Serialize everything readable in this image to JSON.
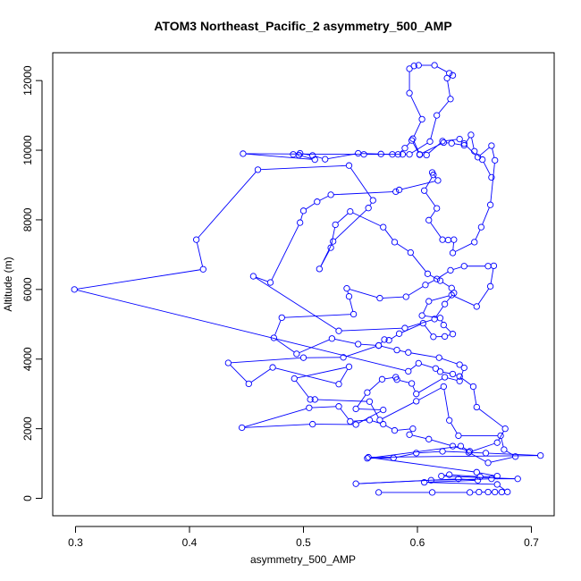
{
  "chart_data": {
    "type": "line",
    "title": "ATOM3 Northeast_Pacific_2 asymmetry_500_AMP",
    "xlabel": "asymmetry_500_AMP",
    "ylabel": "Altitude (m)",
    "xlim": [
      0.28,
      0.72
    ],
    "ylim": [
      -500,
      12800
    ],
    "xticks": [
      0.3,
      0.4,
      0.5,
      0.6,
      0.7
    ],
    "xtick_labels": [
      "0.3",
      "0.4",
      "0.5",
      "0.6",
      "0.7"
    ],
    "yticks": [
      0,
      2000,
      4000,
      6000,
      8000,
      10000,
      12000
    ],
    "ytick_labels": [
      "0",
      "2000",
      "4000",
      "6000",
      "8000",
      "10000",
      "12000"
    ],
    "grid": false,
    "colors": {
      "series": "#0000ff",
      "axes": "#000000"
    },
    "series": [
      {
        "marker": "open-circle",
        "points": [
          [
            0.566,
            170
          ],
          [
            0.613,
            170
          ],
          [
            0.646,
            170
          ],
          [
            0.654,
            180
          ],
          [
            0.662,
            180
          ],
          [
            0.668,
            180
          ],
          [
            0.674,
            180
          ],
          [
            0.679,
            185
          ],
          [
            0.67,
            400
          ],
          [
            0.606,
            460
          ],
          [
            0.653,
            520
          ],
          [
            0.636,
            560
          ],
          [
            0.546,
            420
          ],
          [
            0.612,
            520
          ],
          [
            0.665,
            560
          ],
          [
            0.688,
            560
          ],
          [
            0.621,
            640
          ],
          [
            0.628,
            680
          ],
          [
            0.655,
            620
          ],
          [
            0.67,
            640
          ],
          [
            0.652,
            750
          ],
          [
            0.557,
            1180
          ],
          [
            0.708,
            1230
          ],
          [
            0.66,
            1300
          ],
          [
            0.622,
            1350
          ],
          [
            0.599,
            1300
          ],
          [
            0.579,
            1160
          ],
          [
            0.556,
            1150
          ],
          [
            0.638,
            1500
          ],
          [
            0.646,
            1350
          ],
          [
            0.631,
            1500
          ],
          [
            0.61,
            1700
          ],
          [
            0.593,
            1830
          ],
          [
            0.596,
            2000
          ],
          [
            0.58,
            1950
          ],
          [
            0.57,
            2130
          ],
          [
            0.558,
            2250
          ],
          [
            0.541,
            2210
          ],
          [
            0.531,
            2640
          ],
          [
            0.505,
            2600
          ],
          [
            0.446,
            2030
          ],
          [
            0.508,
            2130
          ],
          [
            0.546,
            2120
          ],
          [
            0.57,
            2540
          ],
          [
            0.546,
            2570
          ],
          [
            0.556,
            3040
          ],
          [
            0.569,
            3420
          ],
          [
            0.581,
            3480
          ],
          [
            0.582,
            3410
          ],
          [
            0.595,
            3300
          ],
          [
            0.599,
            3000
          ],
          [
            0.624,
            3480
          ],
          [
            0.637,
            3370
          ],
          [
            0.641,
            3750
          ],
          [
            0.637,
            3840
          ],
          [
            0.619,
            4040
          ],
          [
            0.592,
            4190
          ],
          [
            0.582,
            4260
          ],
          [
            0.566,
            4390
          ],
          [
            0.548,
            4430
          ],
          [
            0.525,
            4590
          ],
          [
            0.494,
            4150
          ],
          [
            0.474,
            4610
          ],
          [
            0.481,
            5190
          ],
          [
            0.544,
            5290
          ],
          [
            0.54,
            5800
          ],
          [
            0.538,
            6030
          ],
          [
            0.567,
            5750
          ],
          [
            0.59,
            5790
          ],
          [
            0.607,
            6130
          ],
          [
            0.617,
            6300
          ],
          [
            0.629,
            6550
          ],
          [
            0.641,
            6670
          ],
          [
            0.662,
            6670
          ],
          [
            0.667,
            6680
          ],
          [
            0.664,
            6090
          ],
          [
            0.652,
            5510
          ],
          [
            0.63,
            5840
          ],
          [
            0.61,
            5660
          ],
          [
            0.604,
            5250
          ],
          [
            0.62,
            5180
          ],
          [
            0.623,
            4980
          ],
          [
            0.631,
            4720
          ],
          [
            0.624,
            4650
          ],
          [
            0.614,
            4640
          ],
          [
            0.605,
            5030
          ],
          [
            0.584,
            4730
          ],
          [
            0.575,
            4540
          ],
          [
            0.571,
            4560
          ],
          [
            0.566,
            4390
          ],
          [
            0.535,
            4050
          ],
          [
            0.5,
            4040
          ],
          [
            0.434,
            3890
          ],
          [
            0.452,
            3290
          ],
          [
            0.473,
            3760
          ],
          [
            0.531,
            3280
          ],
          [
            0.54,
            3780
          ],
          [
            0.492,
            3440
          ],
          [
            0.506,
            2840
          ],
          [
            0.51,
            2840
          ],
          [
            0.558,
            2780
          ],
          [
            0.567,
            2250
          ],
          [
            0.599,
            2790
          ],
          [
            0.623,
            3210
          ],
          [
            0.628,
            2240
          ],
          [
            0.636,
            1800
          ],
          [
            0.673,
            1800
          ],
          [
            0.676,
            1400
          ],
          [
            0.686,
            1200
          ],
          [
            0.662,
            1020
          ],
          [
            0.645,
            1320
          ],
          [
            0.67,
            1600
          ],
          [
            0.677,
            2000
          ],
          [
            0.652,
            2620
          ],
          [
            0.649,
            3210
          ],
          [
            0.637,
            3500
          ],
          [
            0.631,
            3570
          ],
          [
            0.62,
            3640
          ],
          [
            0.616,
            3730
          ],
          [
            0.601,
            3880
          ],
          [
            0.592,
            3650
          ],
          [
            0.299,
            6000
          ],
          [
            0.412,
            6580
          ],
          [
            0.406,
            7430
          ],
          [
            0.46,
            9440
          ],
          [
            0.54,
            9560
          ],
          [
            0.561,
            8560
          ],
          [
            0.557,
            8340
          ],
          [
            0.526,
            7380
          ],
          [
            0.514,
            6590
          ],
          [
            0.524,
            7200
          ],
          [
            0.528,
            7860
          ],
          [
            0.541,
            8240
          ],
          [
            0.57,
            7790
          ],
          [
            0.58,
            7360
          ],
          [
            0.594,
            7060
          ],
          [
            0.609,
            6450
          ],
          [
            0.62,
            6250
          ],
          [
            0.63,
            6040
          ],
          [
            0.632,
            5900
          ],
          [
            0.624,
            5580
          ],
          [
            0.615,
            5150
          ],
          [
            0.589,
            4890
          ],
          [
            0.531,
            4810
          ],
          [
            0.456,
            6380
          ],
          [
            0.471,
            6200
          ],
          [
            0.497,
            7920
          ],
          [
            0.5,
            8260
          ],
          [
            0.512,
            8520
          ],
          [
            0.524,
            8720
          ],
          [
            0.581,
            8810
          ],
          [
            0.584,
            8860
          ],
          [
            0.618,
            9130
          ],
          [
            0.613,
            9360
          ],
          [
            0.614,
            9290
          ],
          [
            0.606,
            8840
          ],
          [
            0.617,
            8330
          ],
          [
            0.61,
            7990
          ],
          [
            0.622,
            7430
          ],
          [
            0.627,
            7420
          ],
          [
            0.632,
            7430
          ],
          [
            0.631,
            7050
          ],
          [
            0.65,
            7360
          ],
          [
            0.656,
            7790
          ],
          [
            0.664,
            8430
          ],
          [
            0.668,
            9710
          ],
          [
            0.665,
            10130
          ],
          [
            0.653,
            9800
          ],
          [
            0.641,
            10190
          ],
          [
            0.637,
            10320
          ],
          [
            0.622,
            10260
          ],
          [
            0.608,
            9860
          ],
          [
            0.602,
            9870
          ],
          [
            0.595,
            10280
          ],
          [
            0.589,
            10060
          ],
          [
            0.583,
            9880
          ],
          [
            0.578,
            9880
          ],
          [
            0.568,
            9890
          ],
          [
            0.548,
            9910
          ],
          [
            0.519,
            9740
          ],
          [
            0.508,
            9850
          ],
          [
            0.497,
            9910
          ],
          [
            0.491,
            9880
          ],
          [
            0.496,
            9860
          ],
          [
            0.51,
            9730
          ],
          [
            0.447,
            9900
          ],
          [
            0.553,
            9880
          ],
          [
            0.587,
            9880
          ],
          [
            0.593,
            9880
          ],
          [
            0.611,
            10250
          ],
          [
            0.617,
            11000
          ],
          [
            0.629,
            11470
          ],
          [
            0.626,
            12070
          ],
          [
            0.631,
            12150
          ],
          [
            0.628,
            12210
          ],
          [
            0.615,
            12440
          ],
          [
            0.601,
            12440
          ],
          [
            0.597,
            12420
          ],
          [
            0.593,
            12340
          ],
          [
            0.593,
            11640
          ],
          [
            0.604,
            10890
          ],
          [
            0.596,
            10330
          ],
          [
            0.602,
            9880
          ],
          [
            0.623,
            10220
          ],
          [
            0.63,
            10200
          ],
          [
            0.641,
            10140
          ],
          [
            0.647,
            10440
          ],
          [
            0.65,
            9970
          ],
          [
            0.657,
            9730
          ],
          [
            0.665,
            9220
          ]
        ]
      }
    ]
  }
}
